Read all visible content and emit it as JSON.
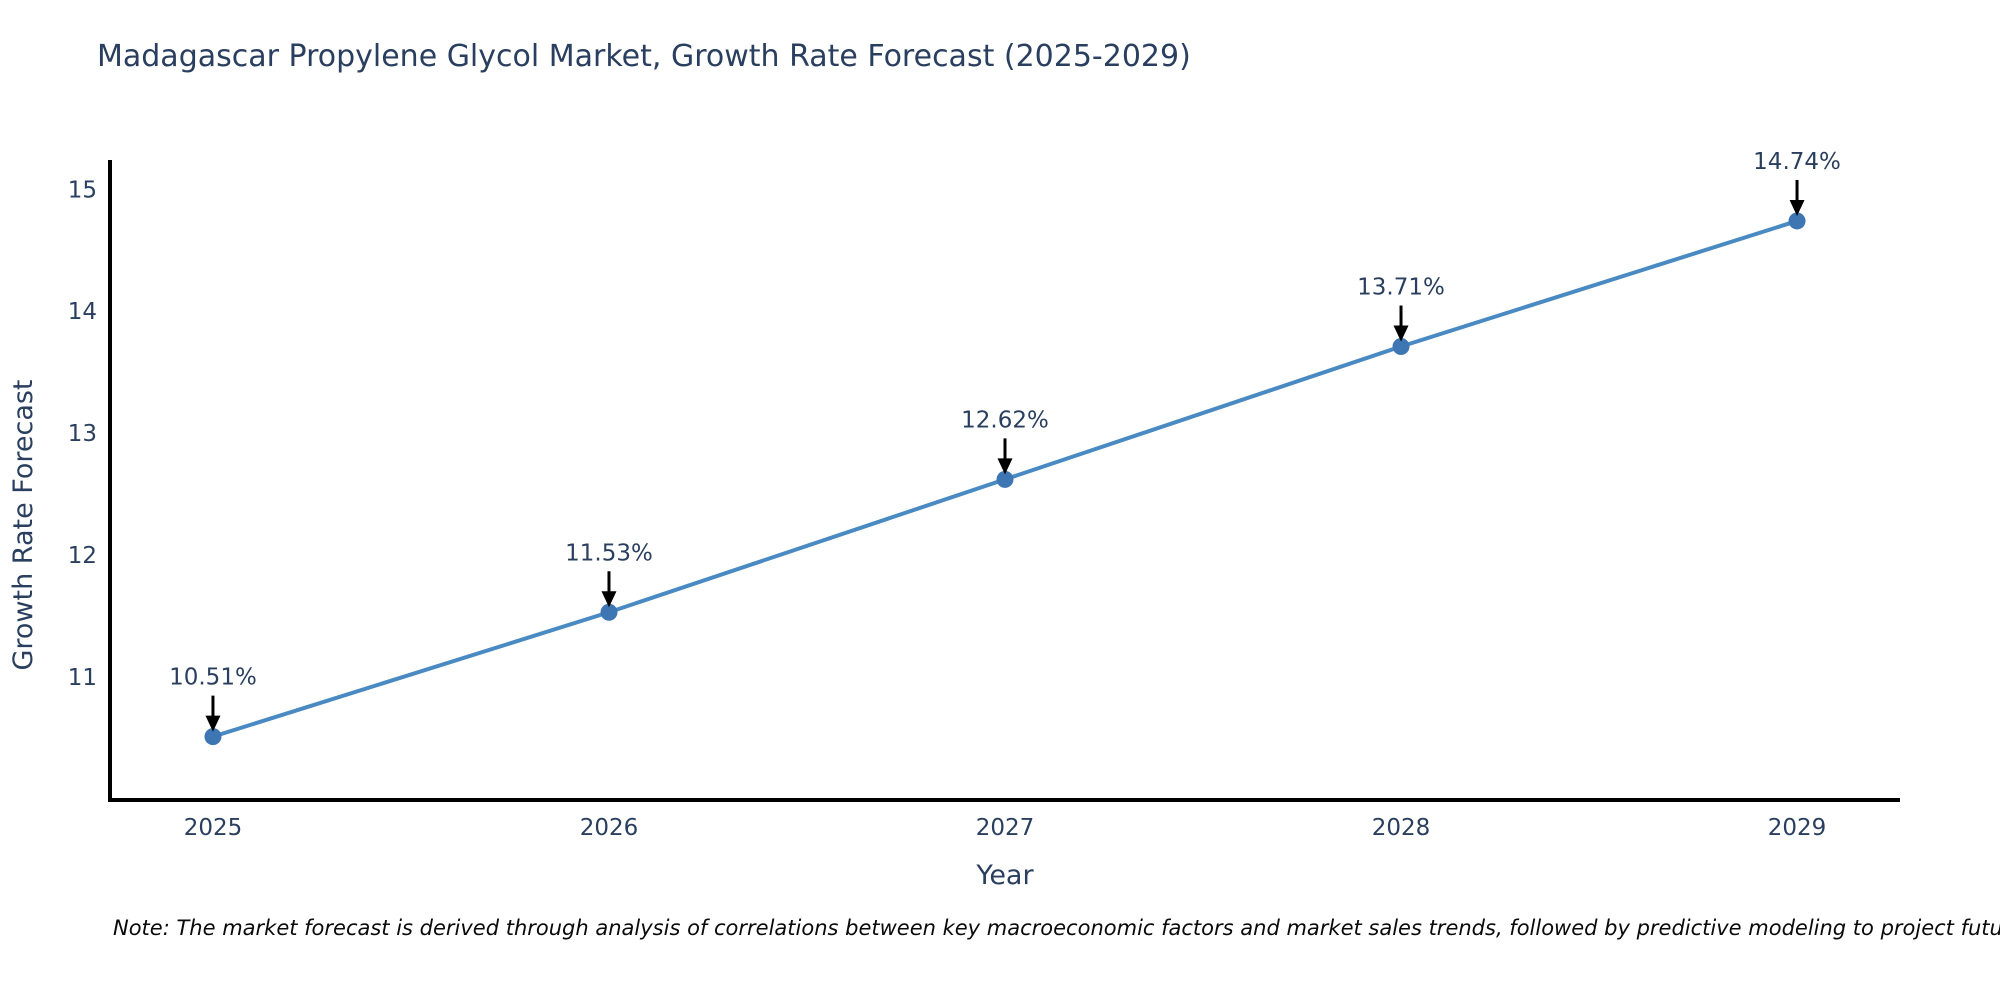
{
  "header": {
    "title": "Madagascar Propylene Glycol Market, Growth Rate Forecast (2025-2029)"
  },
  "footer": {
    "note": "Note: The market forecast is derived through analysis of correlations between key macroeconomic factors and market sales trends, followed by predictive modeling to project future sales."
  },
  "chart_data": {
    "type": "line",
    "title": "Madagascar Propylene Glycol Market, Growth Rate Forecast (2025-2029)",
    "xlabel": "Year",
    "ylabel": "Growth Rate Forecast",
    "x": [
      2025,
      2026,
      2027,
      2028,
      2029
    ],
    "y": [
      10.51,
      11.53,
      12.62,
      13.71,
      14.74
    ],
    "point_labels": [
      "10.51%",
      "11.53%",
      "12.62%",
      "13.71%",
      "14.74%"
    ],
    "x_ticks": [
      "2025",
      "2026",
      "2027",
      "2028",
      "2029"
    ],
    "x_tick_values": [
      2025,
      2026,
      2027,
      2028,
      2029
    ],
    "y_ticks": [
      "11",
      "12",
      "13",
      "14",
      "15"
    ],
    "y_tick_values": [
      11,
      12,
      13,
      14,
      15
    ],
    "xlim": [
      2024.74,
      2029.26
    ],
    "ylim": [
      9.99,
      15.24
    ],
    "grid": false,
    "legend": "none",
    "colors": {
      "line": "#4a8ac2",
      "marker": "#3e76b3",
      "axis_line": "#000000",
      "tick_text": "#2a3f5f",
      "axis_title_text": "#2a3f5f",
      "annotation_text": "#2a3f5f",
      "annotation_arrow": "#000000",
      "title_text": "#2a3f5f",
      "background": "#ffffff"
    }
  }
}
